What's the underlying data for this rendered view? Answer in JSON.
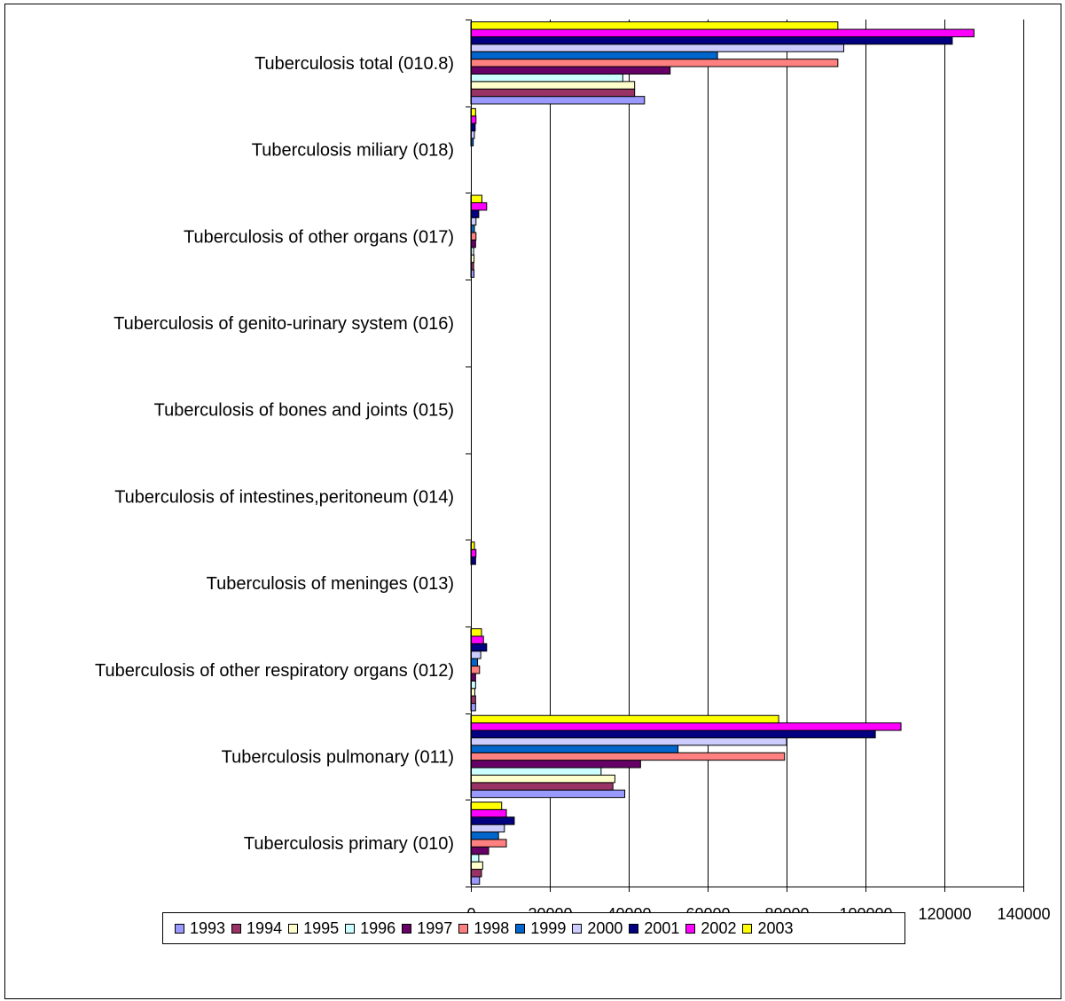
{
  "chart_data": {
    "type": "bar",
    "orientation": "horizontal",
    "categories": [
      "Tuberculosis primary (010)",
      "Tuberculosis pulmonary (011)",
      "Tuberculosis of other respiratory organs (012)",
      "Tuberculosis of meninges (013)",
      "Tuberculosis of intestines,peritoneum (014)",
      "Tuberculosis of bones and joints (015)",
      "Tuberculosis of genito-urinary system (016)",
      "Tuberculosis of other organs (017)",
      "Tuberculosis miliary (018)",
      "Tuberculosis total (010.8)"
    ],
    "series": [
      {
        "name": "1993",
        "color": "#9999FF",
        "values": [
          2200,
          39000,
          1200,
          0,
          0,
          0,
          0,
          800,
          0,
          44000
        ]
      },
      {
        "name": "1994",
        "color": "#993366",
        "values": [
          2700,
          36000,
          1200,
          0,
          0,
          0,
          0,
          700,
          0,
          41500
        ]
      },
      {
        "name": "1995",
        "color": "#FFFFCC",
        "values": [
          3000,
          36500,
          1000,
          0,
          0,
          0,
          0,
          800,
          0,
          41500
        ]
      },
      {
        "name": "1996",
        "color": "#CCFFFF",
        "values": [
          2000,
          33000,
          1200,
          0,
          0,
          0,
          0,
          700,
          0,
          38500
        ]
      },
      {
        "name": "1997",
        "color": "#660066",
        "values": [
          4500,
          43000,
          1200,
          0,
          0,
          0,
          0,
          1200,
          0,
          50500
        ]
      },
      {
        "name": "1998",
        "color": "#FF8080",
        "values": [
          9000,
          79500,
          2200,
          0,
          0,
          0,
          0,
          1300,
          0,
          93000
        ]
      },
      {
        "name": "1999",
        "color": "#0066CC",
        "values": [
          7000,
          52500,
          1700,
          0,
          0,
          0,
          0,
          900,
          600,
          62500
        ]
      },
      {
        "name": "2000",
        "color": "#CCCCFF",
        "values": [
          8500,
          80000,
          2500,
          0,
          0,
          0,
          0,
          1300,
          900,
          94500
        ]
      },
      {
        "name": "2001",
        "color": "#000080",
        "values": [
          11000,
          102500,
          4000,
          1200,
          0,
          0,
          0,
          2000,
          1100,
          122000
        ]
      },
      {
        "name": "2002",
        "color": "#FF00FF",
        "values": [
          9000,
          109000,
          3200,
          1300,
          0,
          0,
          0,
          4000,
          1300,
          127500
        ]
      },
      {
        "name": "2003",
        "color": "#FFFF00",
        "values": [
          7800,
          78000,
          2700,
          900,
          0,
          0,
          0,
          2800,
          1200,
          93000
        ]
      }
    ],
    "xlim": [
      0,
      140000
    ],
    "xticks": [
      "0",
      "20000",
      "40000",
      "60000",
      "80000",
      "100000",
      "120000",
      "140000"
    ],
    "grid": "vertical major gridlines",
    "legend": "bottom",
    "title": "",
    "xlabel": "",
    "ylabel": ""
  }
}
